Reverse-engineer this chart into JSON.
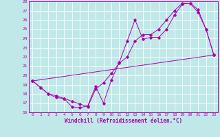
{
  "title": "",
  "xlabel": "Windchill (Refroidissement éolien,°C)",
  "xlim": [
    -0.5,
    23.5
  ],
  "ylim": [
    16,
    28
  ],
  "xticks": [
    0,
    1,
    2,
    3,
    4,
    5,
    6,
    7,
    8,
    9,
    10,
    11,
    12,
    13,
    14,
    15,
    16,
    17,
    18,
    19,
    20,
    21,
    22,
    23
  ],
  "yticks": [
    16,
    17,
    18,
    19,
    20,
    21,
    22,
    23,
    24,
    25,
    26,
    27,
    28
  ],
  "bg_color": "#c0e8e8",
  "line_color": "#aa00aa",
  "grid_color": "#ffffff",
  "line1_x": [
    0,
    1,
    2,
    3,
    4,
    5,
    6,
    7,
    8,
    9,
    10,
    11,
    12,
    13,
    14,
    15,
    16,
    17,
    18,
    19,
    20,
    21,
    22,
    23
  ],
  "line1_y": [
    19.4,
    18.7,
    18.0,
    17.6,
    17.5,
    16.6,
    16.5,
    16.7,
    18.8,
    17.0,
    19.5,
    21.4,
    23.7,
    26.0,
    23.9,
    24.1,
    24.1,
    25.0,
    26.5,
    27.7,
    27.8,
    27.1,
    25.0,
    22.2
  ],
  "line2_x": [
    0,
    1,
    2,
    3,
    4,
    5,
    6,
    7,
    8,
    9,
    10,
    11,
    12,
    13,
    14,
    15,
    16,
    17,
    18,
    19,
    20,
    21,
    22,
    23
  ],
  "line2_y": [
    19.4,
    18.7,
    18.0,
    17.8,
    17.5,
    17.2,
    16.9,
    16.6,
    18.5,
    19.2,
    20.2,
    21.3,
    22.0,
    23.7,
    24.4,
    24.4,
    25.0,
    26.0,
    27.0,
    27.8,
    27.8,
    26.8,
    25.0,
    22.2
  ],
  "line3_x": [
    0,
    23
  ],
  "line3_y": [
    19.4,
    22.2
  ],
  "tick_labelsize": 4.5,
  "xlabel_fontsize": 5.5,
  "marker_size": 1.8,
  "linewidth": 0.7
}
